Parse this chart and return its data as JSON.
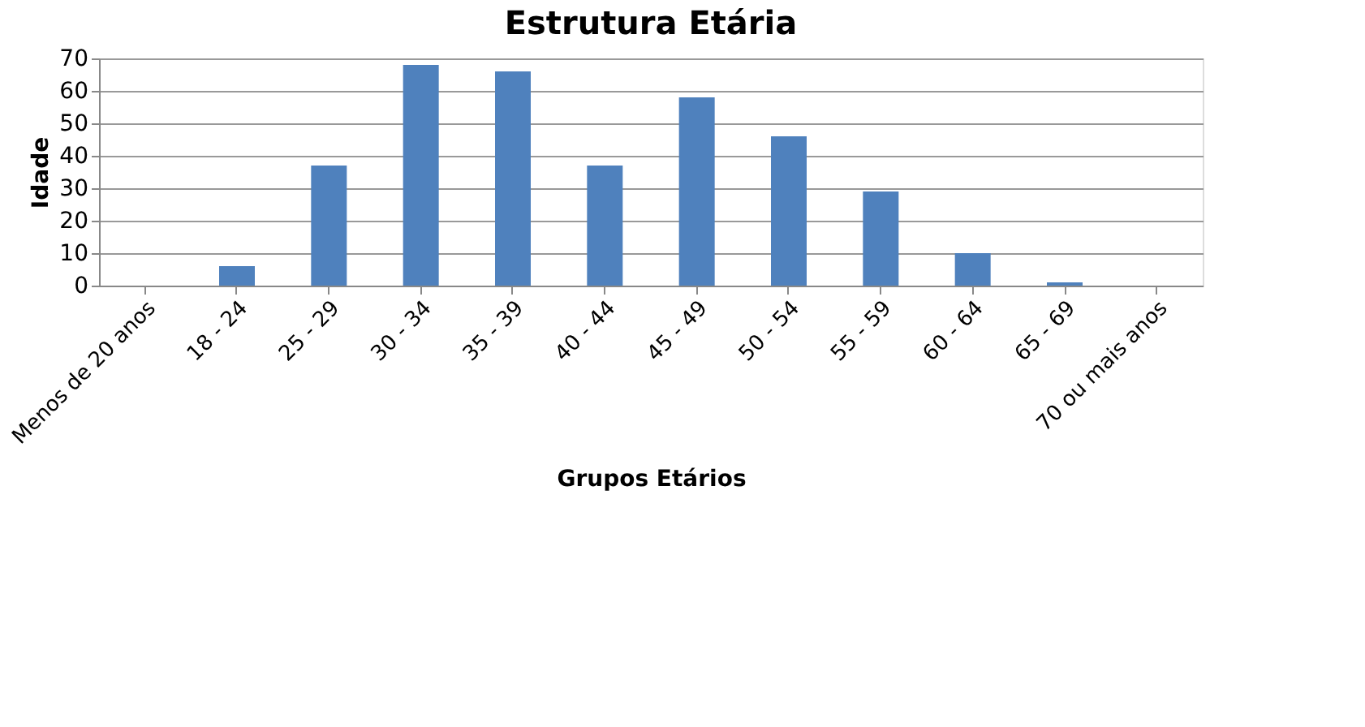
{
  "chart_data": {
    "type": "bar",
    "title": "Estrutura Etária",
    "xlabel": "Grupos Etários",
    "ylabel": "Idade",
    "categories": [
      "Menos de 20 anos",
      "18 - 24",
      "25 - 29",
      "30 - 34",
      "35 - 39",
      "40 - 44",
      "45 - 49",
      "50 - 54",
      "55 - 59",
      "60 - 64",
      "65 - 69",
      "70 ou mais anos"
    ],
    "values": [
      0,
      6,
      37,
      68,
      66,
      37,
      58,
      46,
      29,
      10,
      1,
      0
    ],
    "color": "#4f81bd",
    "ylim": [
      0,
      70
    ],
    "yticks": [
      0,
      10,
      20,
      30,
      40,
      50,
      60,
      70
    ],
    "grid": "y"
  }
}
